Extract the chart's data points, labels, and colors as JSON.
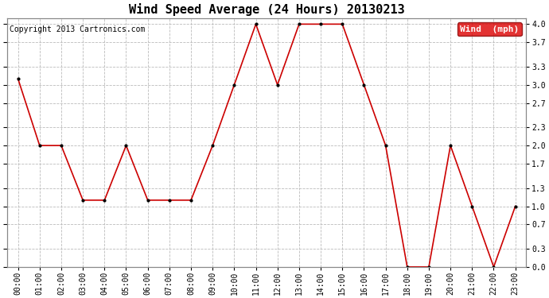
{
  "title": "Wind Speed Average (24 Hours) 20130213",
  "copyright": "Copyright 2013 Cartronics.com",
  "legend_label": "Wind  (mph)",
  "legend_bg": "#dd0000",
  "legend_text_color": "#ffffff",
  "hours": [
    "00:00",
    "01:00",
    "02:00",
    "03:00",
    "04:00",
    "05:00",
    "06:00",
    "07:00",
    "08:00",
    "09:00",
    "10:00",
    "11:00",
    "12:00",
    "13:00",
    "14:00",
    "15:00",
    "16:00",
    "17:00",
    "18:00",
    "19:00",
    "20:00",
    "21:00",
    "22:00",
    "23:00"
  ],
  "values": [
    3.1,
    2.0,
    2.0,
    1.1,
    1.1,
    2.0,
    1.1,
    1.1,
    1.1,
    2.0,
    3.0,
    4.0,
    3.0,
    4.0,
    4.0,
    4.0,
    3.0,
    2.0,
    0.0,
    0.0,
    2.0,
    1.0,
    0.0,
    1.0
  ],
  "line_color": "#cc0000",
  "marker_color": "#000000",
  "background_color": "#ffffff",
  "grid_color": "#bbbbbb",
  "ylim": [
    0.0,
    4.1
  ],
  "yticks": [
    0.0,
    0.3,
    0.7,
    1.0,
    1.3,
    1.7,
    2.0,
    2.3,
    2.7,
    3.0,
    3.3,
    3.7,
    4.0
  ],
  "title_fontsize": 11,
  "copyright_fontsize": 7,
  "tick_fontsize": 7,
  "legend_fontsize": 8
}
